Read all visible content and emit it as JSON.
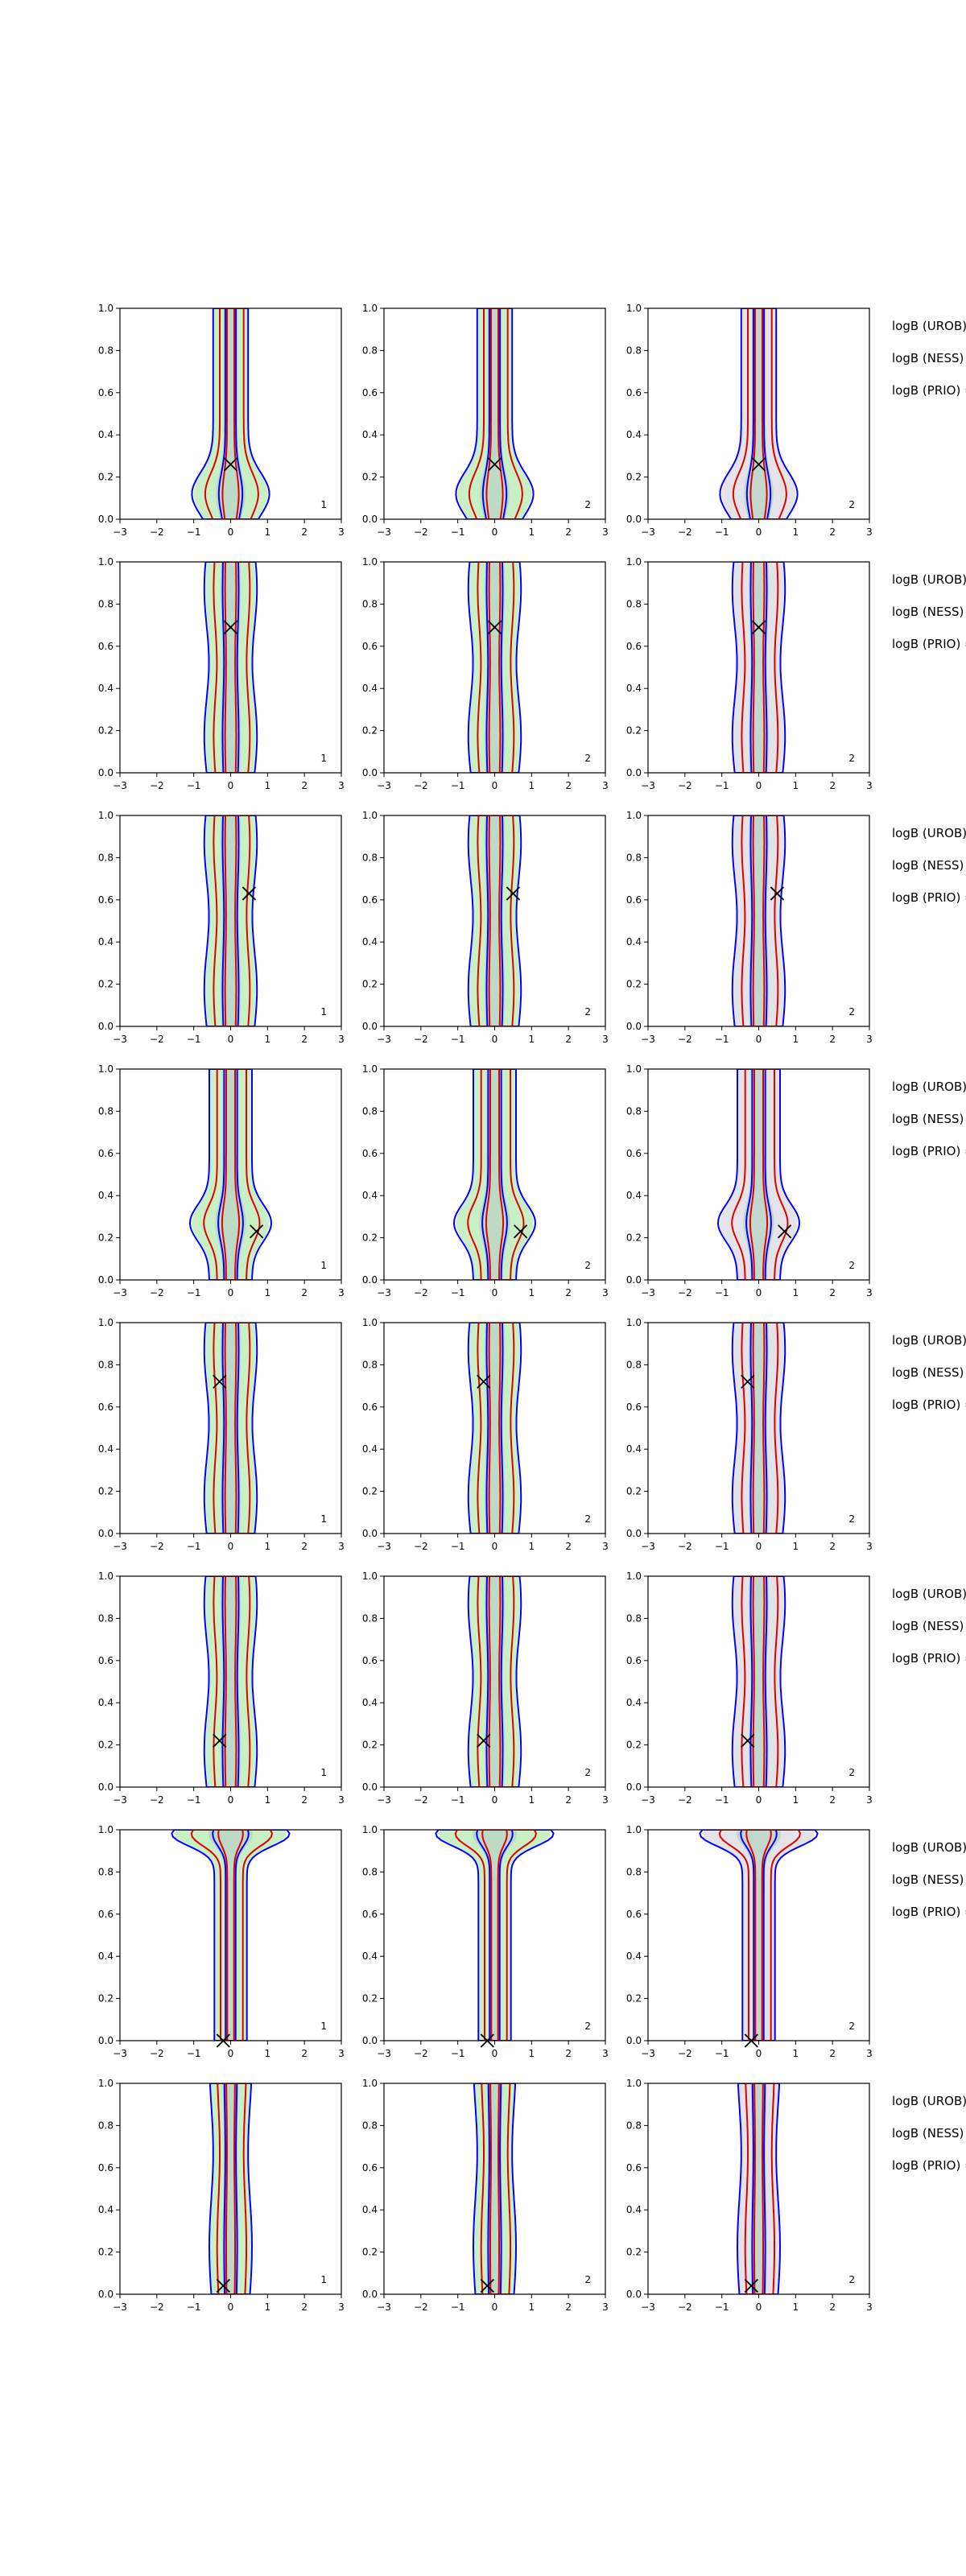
{
  "chart_data": {
    "type": "contour",
    "grid": {
      "rows": 8,
      "cols": 3
    },
    "xlim": [
      -3,
      3
    ],
    "ylim": [
      0,
      1
    ],
    "xticks": [
      -3,
      -2,
      -1,
      0,
      1,
      2,
      3
    ],
    "yticks": [
      0.0,
      0.2,
      0.4,
      0.6,
      0.8,
      1.0
    ],
    "xtick_labels": [
      "−3",
      "−2",
      "−1",
      "0",
      "1",
      "2",
      "3"
    ],
    "ytick_labels": [
      "0.0",
      "0.2",
      "0.4",
      "0.6",
      "0.8",
      "1.0"
    ],
    "series_colors": {
      "fill_col1": "#c9efc4",
      "fill_col2": "#c9efc4",
      "fill_col3": "#e3e3e8",
      "inner_fill": "#b9d4c5",
      "blue": "#0000ff",
      "red": "#e00000"
    },
    "side_text_lines": [
      "logB (UROB) =",
      "logB (NESS) =",
      "logB (PRIO) ="
    ],
    "rows": [
      {
        "marker": {
          "x": 0.0,
          "y": 0.26
        },
        "corner_labels": [
          "1",
          "2",
          "2"
        ],
        "profile": "bulb_low"
      },
      {
        "marker": {
          "x": 0.0,
          "y": 0.69
        },
        "corner_labels": [
          "1",
          "2",
          "2"
        ],
        "profile": "column"
      },
      {
        "marker": {
          "x": 0.5,
          "y": 0.63
        },
        "corner_labels": [
          "1",
          "2",
          "2"
        ],
        "profile": "column"
      },
      {
        "marker": {
          "x": 0.7,
          "y": 0.23
        },
        "corner_labels": [
          "1",
          "2",
          "2"
        ],
        "profile": "bulge_low"
      },
      {
        "marker": {
          "x": -0.3,
          "y": 0.72
        },
        "corner_labels": [
          "1",
          "2",
          "2"
        ],
        "profile": "column"
      },
      {
        "marker": {
          "x": -0.3,
          "y": 0.22
        },
        "corner_labels": [
          "1",
          "2",
          "2"
        ],
        "profile": "column"
      },
      {
        "marker": {
          "x": -0.2,
          "y": 0.0
        },
        "corner_labels": [
          "1",
          "2",
          "2"
        ],
        "profile": "top_cap"
      },
      {
        "marker": {
          "x": -0.2,
          "y": 0.04
        },
        "corner_labels": [
          "1",
          "2",
          "2"
        ],
        "profile": "narrow"
      }
    ]
  }
}
